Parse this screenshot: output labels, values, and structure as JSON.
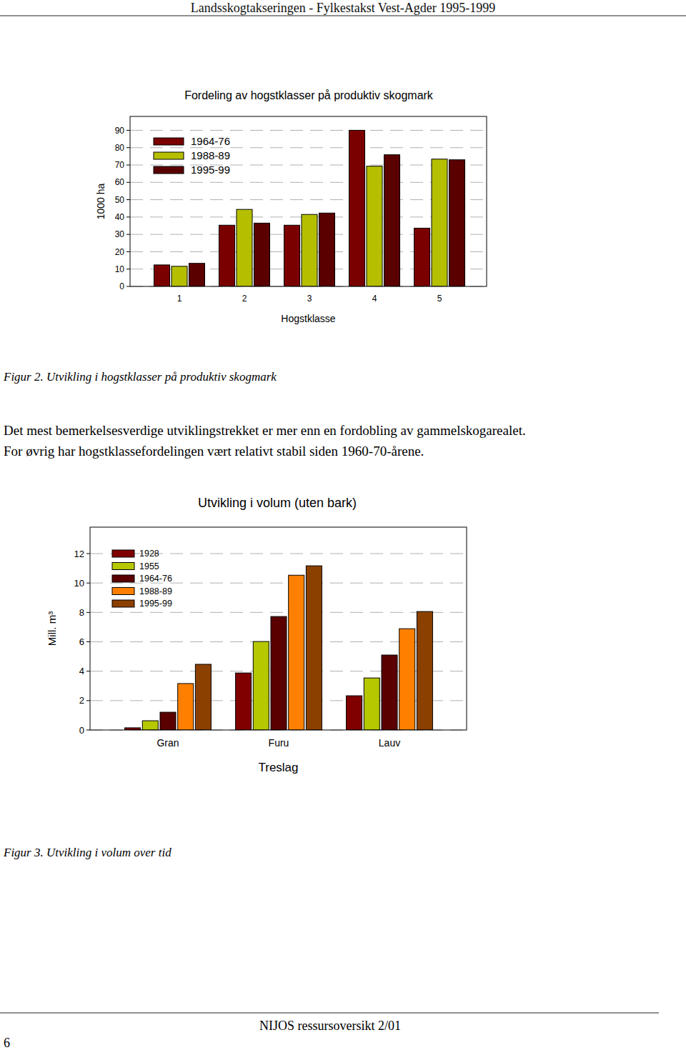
{
  "header": {
    "title": "Landsskogtakseringen - Fylkestakst Vest-Agder 1995-1999"
  },
  "chart_data": [
    {
      "type": "bar",
      "title": "Fordeling av hogstklasser på produktiv skogmark",
      "x_label": "Hogstklasse",
      "y_label": "1000 ha",
      "categories": [
        "1",
        "2",
        "3",
        "4",
        "5"
      ],
      "series": [
        {
          "name": "1964-76",
          "color": "#7a0000",
          "values": [
            12.4,
            35.3,
            35.3,
            90,
            33.6
          ]
        },
        {
          "name": "1988-89",
          "color": "#b5bf00",
          "values": [
            11.6,
            44.4,
            41.5,
            69.3,
            73.4
          ]
        },
        {
          "name": "1995-99",
          "color": "#5a0000",
          "values": [
            13.3,
            36.5,
            42.3,
            75.9,
            73.0
          ]
        }
      ],
      "ylim": [
        0,
        98
      ],
      "yticks": [
        0,
        10,
        20,
        30,
        40,
        50,
        60,
        70,
        80,
        90
      ],
      "grid": true,
      "legend": "top-left"
    },
    {
      "type": "bar",
      "title": "Utvikling i volum (uten bark)",
      "x_label": "Treslag",
      "y_label": "Mill. m³",
      "categories": [
        "Gran",
        "Furu",
        "Lauv"
      ],
      "series": [
        {
          "name": "1928",
          "color": "#800000",
          "values": [
            0.15,
            3.88,
            2.33
          ]
        },
        {
          "name": "1955",
          "color": "#b5c800",
          "values": [
            0.63,
            6.02,
            3.54
          ]
        },
        {
          "name": "1964-76",
          "color": "#5a0000",
          "values": [
            1.21,
            7.72,
            5.1
          ]
        },
        {
          "name": "1988-89",
          "color": "#ff8000",
          "values": [
            3.16,
            10.53,
            6.89
          ]
        },
        {
          "name": "1995-99",
          "color": "#8b4000",
          "values": [
            4.47,
            11.17,
            8.06
          ]
        }
      ],
      "ylim": [
        0,
        13.8
      ],
      "yticks": [
        0,
        2,
        4,
        6,
        8,
        10,
        12
      ],
      "grid": true,
      "legend": "top-left"
    }
  ],
  "captions": [
    "Figur 2. Utvikling i hogstklasser på produktiv skogmark",
    "Figur 3. Utvikling i volum over tid"
  ],
  "paragraph": [
    "Det mest bemerkelsesverdige utviklingstrekket er mer enn en fordobling av gammelskogarealet.",
    "For øvrig har hogstklassefordelingen vært relativt stabil siden 1960-70-årene."
  ],
  "footer": {
    "text": "NIJOS ressursoversikt 2/01",
    "page": "6"
  }
}
